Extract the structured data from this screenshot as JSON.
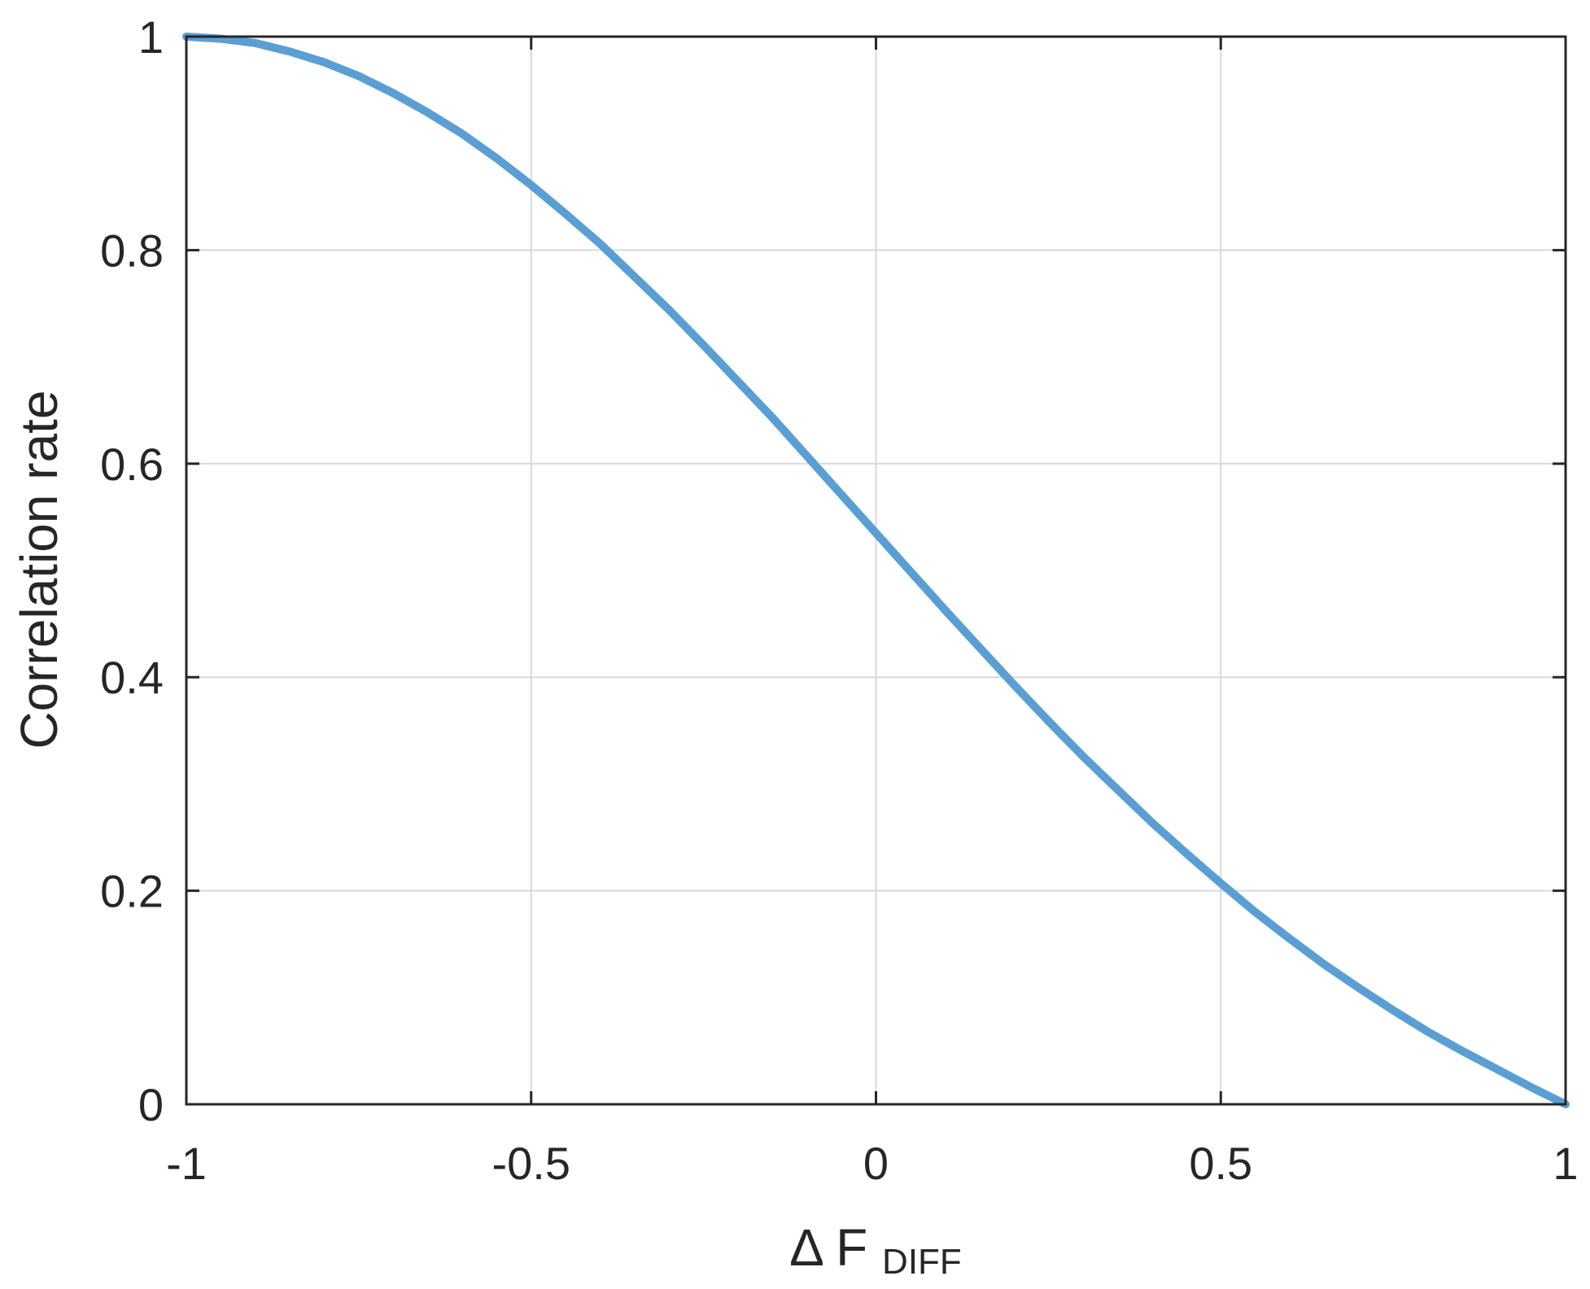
{
  "chart_data": {
    "type": "line",
    "xlabel_main": "Δ F",
    "xlabel_sub": "DIFF",
    "ylabel": "Correlation rate",
    "xlim": [
      -1,
      1
    ],
    "ylim": [
      0,
      1
    ],
    "xticks": [
      -1,
      -0.5,
      0,
      0.5,
      1
    ],
    "xtick_labels": [
      "-1",
      "-0.5",
      "0",
      "0.5",
      "1"
    ],
    "yticks": [
      0,
      0.2,
      0.4,
      0.6,
      0.8,
      1
    ],
    "ytick_labels": [
      "0",
      "0.2",
      "0.4",
      "0.6",
      "0.8",
      "1"
    ],
    "grid": true,
    "series": [
      {
        "color": "#5a9fd4",
        "x": [
          -1,
          -0.95,
          -0.9,
          -0.85,
          -0.8,
          -0.75,
          -0.7,
          -0.65,
          -0.6,
          -0.55,
          -0.5,
          -0.45,
          -0.4,
          -0.35,
          -0.3,
          -0.25,
          -0.2,
          -0.15,
          -0.1,
          -0.05,
          0,
          0.05,
          0.1,
          0.15,
          0.2,
          0.25,
          0.3,
          0.35,
          0.4,
          0.45,
          0.5,
          0.55,
          0.6,
          0.65,
          0.7,
          0.75,
          0.8,
          0.85,
          0.9,
          0.95,
          1
        ],
        "y": [
          1.0,
          0.998,
          0.994,
          0.986,
          0.976,
          0.963,
          0.947,
          0.929,
          0.909,
          0.886,
          0.861,
          0.834,
          0.806,
          0.775,
          0.744,
          0.711,
          0.677,
          0.643,
          0.607,
          0.571,
          0.535,
          0.499,
          0.463,
          0.428,
          0.393,
          0.359,
          0.326,
          0.295,
          0.264,
          0.235,
          0.207,
          0.18,
          0.155,
          0.131,
          0.109,
          0.088,
          0.068,
          0.05,
          0.033,
          0.016,
          0.0
        ]
      }
    ]
  }
}
